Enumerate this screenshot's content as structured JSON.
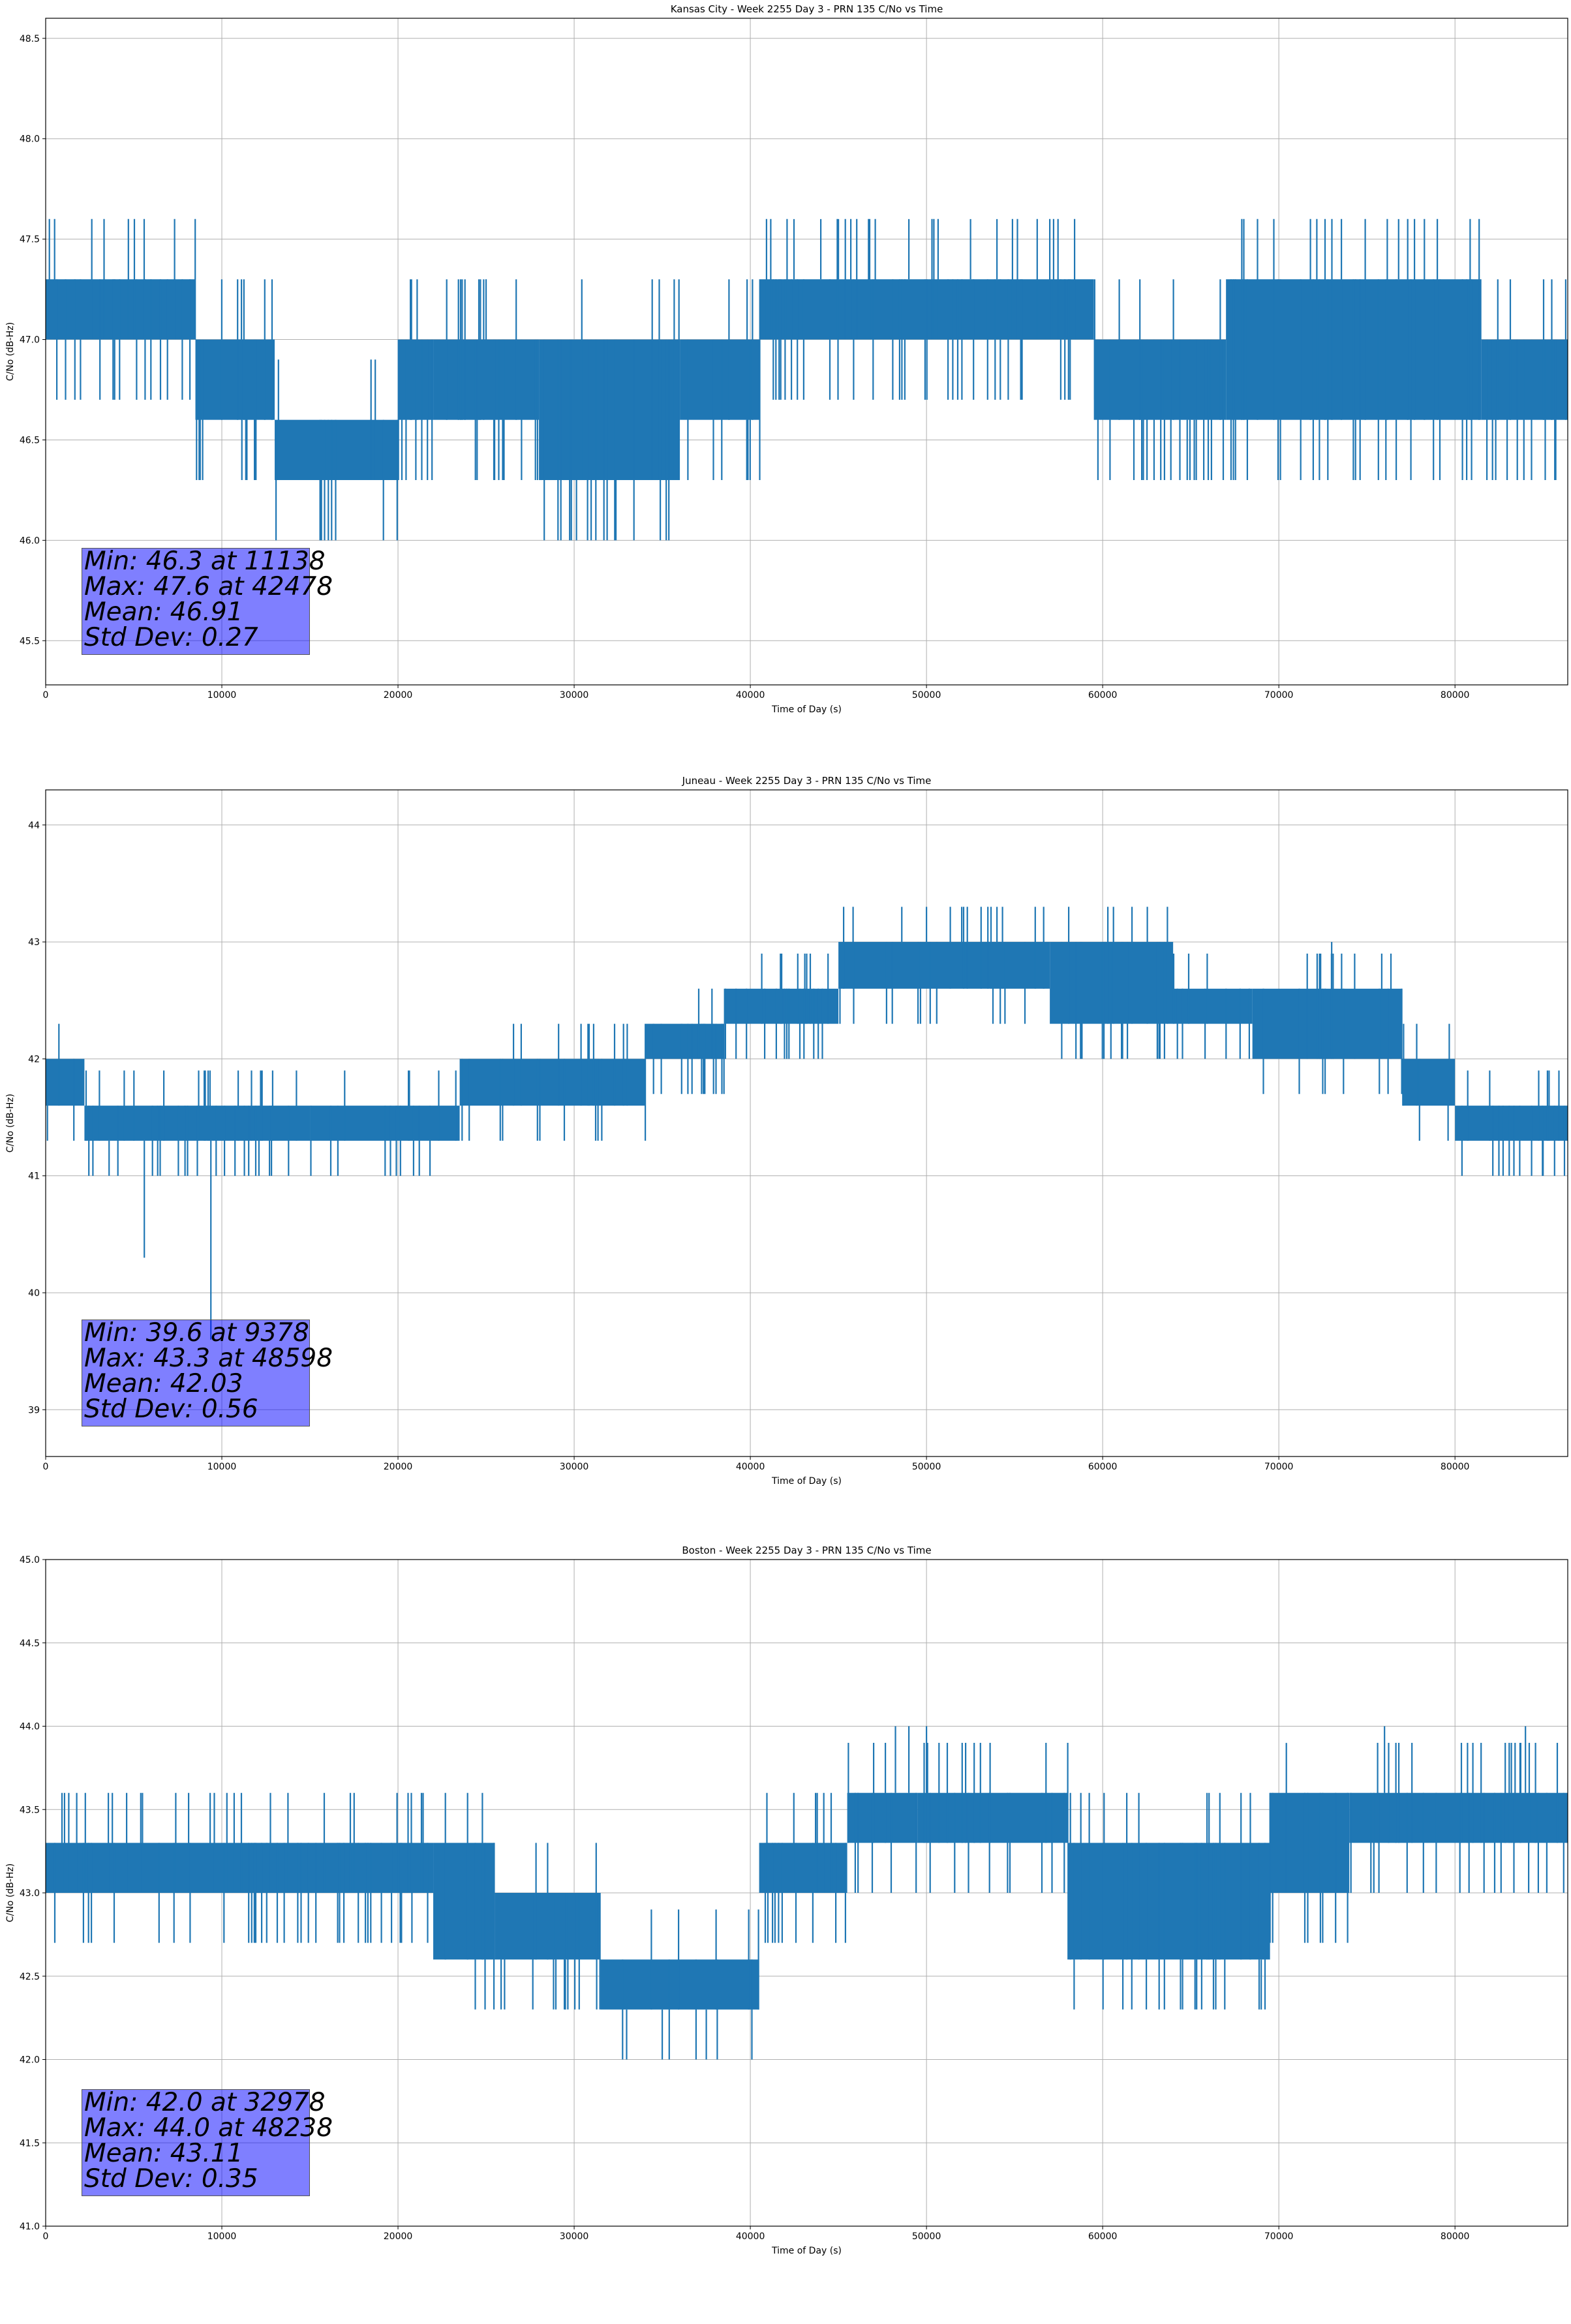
{
  "chart_data": [
    {
      "type": "line",
      "title": "Kansas City - Week 2255 Day 3 - PRN 135 C/No vs Time",
      "xlabel": "Time of Day (s)",
      "ylabel": "C/No (dB-Hz)",
      "xlim": [
        0,
        86400
      ],
      "ylim": [
        45.28,
        48.6
      ],
      "xticks": [
        0,
        10000,
        20000,
        30000,
        40000,
        50000,
        60000,
        70000,
        80000
      ],
      "yticks": [
        "45.5",
        "46.0",
        "46.5",
        "47.0",
        "47.5",
        "48.0",
        "48.5"
      ],
      "grid": true,
      "color": "#1f77b4",
      "stats": [
        "Min: 46.3 at 11138",
        "Max: 47.6 at 42478",
        "Mean: 46.91",
        "Std Dev: 0.27"
      ],
      "series": [
        {
          "segments": [
            {
              "x0": 0,
              "x1": 8500,
              "lo": 47.0,
              "hi": 47.3
            },
            {
              "x0": 8500,
              "x1": 13000,
              "lo": 46.6,
              "hi": 47.0
            },
            {
              "x0": 13000,
              "x1": 20000,
              "lo": 46.3,
              "hi": 46.6
            },
            {
              "x0": 20000,
              "x1": 22000,
              "lo": 46.6,
              "hi": 47.0
            },
            {
              "x0": 22000,
              "x1": 28000,
              "lo": 46.6,
              "hi": 47.0
            },
            {
              "x0": 28000,
              "x1": 36000,
              "lo": 46.3,
              "hi": 47.0
            },
            {
              "x0": 36000,
              "x1": 40500,
              "lo": 46.6,
              "hi": 47.0
            },
            {
              "x0": 40500,
              "x1": 59500,
              "lo": 47.0,
              "hi": 47.3
            },
            {
              "x0": 59500,
              "x1": 67000,
              "lo": 46.6,
              "hi": 47.0
            },
            {
              "x0": 67000,
              "x1": 81500,
              "lo": 46.6,
              "hi": 47.3
            },
            {
              "x0": 81500,
              "x1": 86400,
              "lo": 46.6,
              "hi": 47.0
            }
          ],
          "spikes": [
            {
              "x": 11138,
              "v": 46.3
            },
            {
              "x": 39800,
              "v": 46.3
            },
            {
              "x": 42478,
              "v": 47.6
            },
            {
              "x": 44000,
              "v": 47.6
            },
            {
              "x": 45000,
              "v": 47.6
            },
            {
              "x": 49000,
              "v": 47.6
            },
            {
              "x": 52500,
              "v": 47.6
            },
            {
              "x": 54000,
              "v": 47.6
            },
            {
              "x": 76800,
              "v": 47.6
            },
            {
              "x": 64800,
              "v": 46.3
            },
            {
              "x": 65200,
              "v": 46.3
            },
            {
              "x": 25000,
              "v": 47.3
            }
          ]
        }
      ]
    },
    {
      "type": "line",
      "title": "Juneau - Week 2255 Day 3 - PRN 135 C/No vs Time",
      "xlabel": "Time of Day (s)",
      "ylabel": "C/No (dB-Hz)",
      "xlim": [
        0,
        86400
      ],
      "ylim": [
        38.6,
        44.3
      ],
      "xticks": [
        0,
        10000,
        20000,
        30000,
        40000,
        50000,
        60000,
        70000,
        80000
      ],
      "yticks": [
        "39",
        "40",
        "41",
        "42",
        "43",
        "44"
      ],
      "grid": true,
      "color": "#1f77b4",
      "stats": [
        "Min: 39.6 at 9378",
        "Max: 43.3 at 48598",
        "Mean: 42.03",
        "Std Dev: 0.56"
      ],
      "series": [
        {
          "segments": [
            {
              "x0": 0,
              "x1": 2200,
              "lo": 41.6,
              "hi": 42.0
            },
            {
              "x0": 2200,
              "x1": 15000,
              "lo": 41.3,
              "hi": 41.6
            },
            {
              "x0": 15000,
              "x1": 23500,
              "lo": 41.3,
              "hi": 41.6
            },
            {
              "x0": 23500,
              "x1": 34000,
              "lo": 41.6,
              "hi": 42.0
            },
            {
              "x0": 34000,
              "x1": 38500,
              "lo": 42.0,
              "hi": 42.3
            },
            {
              "x0": 38500,
              "x1": 45000,
              "lo": 42.3,
              "hi": 42.6
            },
            {
              "x0": 45000,
              "x1": 57000,
              "lo": 42.6,
              "hi": 43.0
            },
            {
              "x0": 57000,
              "x1": 64000,
              "lo": 42.3,
              "hi": 43.0
            },
            {
              "x0": 64000,
              "x1": 68500,
              "lo": 42.3,
              "hi": 42.6
            },
            {
              "x0": 68500,
              "x1": 77000,
              "lo": 42.0,
              "hi": 42.6
            },
            {
              "x0": 77000,
              "x1": 80000,
              "lo": 41.6,
              "hi": 42.0
            },
            {
              "x0": 80000,
              "x1": 86400,
              "lo": 41.3,
              "hi": 41.6
            }
          ],
          "spikes": [
            {
              "x": 9378,
              "v": 39.6
            },
            {
              "x": 5600,
              "v": 40.3
            },
            {
              "x": 3600,
              "v": 41.0
            },
            {
              "x": 48598,
              "v": 43.3
            },
            {
              "x": 50000,
              "v": 43.3
            },
            {
              "x": 52000,
              "v": 43.3
            },
            {
              "x": 54000,
              "v": 43.3
            },
            {
              "x": 73000,
              "v": 43.0
            },
            {
              "x": 85000,
              "v": 41.0
            }
          ]
        }
      ]
    },
    {
      "type": "line",
      "title": "Boston - Week 2255 Day 3 - PRN 135 C/No vs Time",
      "xlabel": "Time of Day (s)",
      "ylabel": "C/No (dB-Hz)",
      "xlim": [
        0,
        86400
      ],
      "ylim": [
        41.0,
        45.0
      ],
      "xticks": [
        0,
        10000,
        20000,
        30000,
        40000,
        50000,
        60000,
        70000,
        80000
      ],
      "yticks": [
        "41.0",
        "41.5",
        "42.0",
        "42.5",
        "43.0",
        "43.5",
        "44.0",
        "44.5",
        "45.0"
      ],
      "grid": true,
      "color": "#1f77b4",
      "stats": [
        "Min: 42.0 at 32978",
        "Max: 44.0 at 48238",
        "Mean: 43.11",
        "Std Dev: 0.35"
      ],
      "series": [
        {
          "segments": [
            {
              "x0": 0,
              "x1": 22000,
              "lo": 43.0,
              "hi": 43.3
            },
            {
              "x0": 22000,
              "x1": 25500,
              "lo": 42.6,
              "hi": 43.3
            },
            {
              "x0": 25500,
              "x1": 31500,
              "lo": 42.6,
              "hi": 43.0
            },
            {
              "x0": 31500,
              "x1": 40500,
              "lo": 42.3,
              "hi": 42.6
            },
            {
              "x0": 40500,
              "x1": 45500,
              "lo": 43.0,
              "hi": 43.3
            },
            {
              "x0": 45500,
              "x1": 49500,
              "lo": 43.3,
              "hi": 43.6
            },
            {
              "x0": 49500,
              "x1": 58000,
              "lo": 43.3,
              "hi": 43.6
            },
            {
              "x0": 58000,
              "x1": 69500,
              "lo": 42.6,
              "hi": 43.3
            },
            {
              "x0": 69500,
              "x1": 74000,
              "lo": 43.0,
              "hi": 43.6
            },
            {
              "x0": 74000,
              "x1": 86400,
              "lo": 43.3,
              "hi": 43.6
            }
          ],
          "spikes": [
            {
              "x": 32978,
              "v": 42.0
            },
            {
              "x": 35000,
              "v": 42.0
            },
            {
              "x": 37500,
              "v": 42.0
            },
            {
              "x": 48238,
              "v": 44.0
            },
            {
              "x": 49000,
              "v": 44.0
            },
            {
              "x": 50000,
              "v": 44.0
            },
            {
              "x": 69000,
              "v": 42.3
            },
            {
              "x": 29500,
              "v": 42.3
            },
            {
              "x": 76000,
              "v": 44.0
            },
            {
              "x": 84000,
              "v": 44.0
            }
          ]
        }
      ]
    }
  ]
}
